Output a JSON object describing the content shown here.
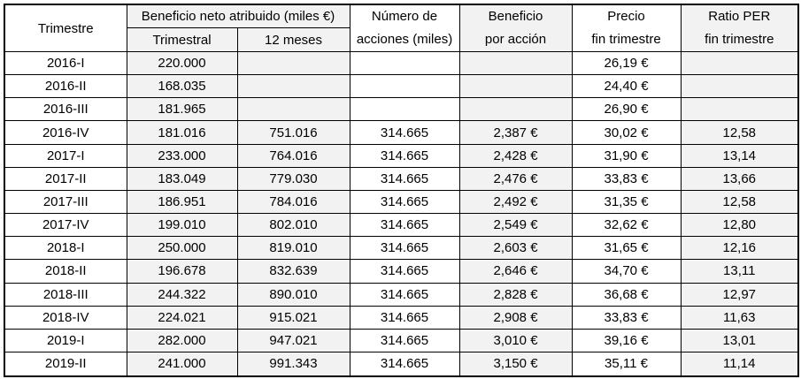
{
  "header": {
    "trimestre": "Trimestre",
    "beneficio_group": "Beneficio neto atribuido (miles €)",
    "trimestral": "Trimestral",
    "doce_meses": "12 meses",
    "acciones_l1": "Número de",
    "acciones_l2": "acciones (miles)",
    "bpa_l1": "Beneficio",
    "bpa_l2": "por acción",
    "precio_l1": "Precio",
    "precio_l2": "fin trimestre",
    "per_l1": "Ratio PER",
    "per_l2": "fin trimestre"
  },
  "colors": {
    "shaded_column_bg": "#f2f2f2",
    "border": "#000000",
    "text": "#000000",
    "background": "#ffffff"
  },
  "chart_data": {
    "type": "table",
    "columns": [
      "Trimestre",
      "Beneficio neto atribuido (miles €) - Trimestral",
      "Beneficio neto atribuido (miles €) - 12 meses",
      "Número de acciones (miles)",
      "Beneficio por acción",
      "Precio fin trimestre",
      "Ratio PER fin trimestre"
    ],
    "rows": [
      [
        "2016-I",
        "220.000",
        "",
        "",
        "",
        "26,19 €",
        ""
      ],
      [
        "2016-II",
        "168.035",
        "",
        "",
        "",
        "24,40 €",
        ""
      ],
      [
        "2016-III",
        "181.965",
        "",
        "",
        "",
        "26,90 €",
        ""
      ],
      [
        "2016-IV",
        "181.016",
        "751.016",
        "314.665",
        "2,387 €",
        "30,02 €",
        "12,58"
      ],
      [
        "2017-I",
        "233.000",
        "764.016",
        "314.665",
        "2,428 €",
        "31,90 €",
        "13,14"
      ],
      [
        "2017-II",
        "183.049",
        "779.030",
        "314.665",
        "2,476 €",
        "33,83 €",
        "13,66"
      ],
      [
        "2017-III",
        "186.951",
        "784.016",
        "314.665",
        "2,492 €",
        "31,35 €",
        "12,58"
      ],
      [
        "2017-IV",
        "199.010",
        "802.010",
        "314.665",
        "2,549 €",
        "32,62 €",
        "12,80"
      ],
      [
        "2018-I",
        "250.000",
        "819.010",
        "314.665",
        "2,603 €",
        "31,65 €",
        "12,16"
      ],
      [
        "2018-II",
        "196.678",
        "832.639",
        "314.665",
        "2,646 €",
        "34,70 €",
        "13,11"
      ],
      [
        "2018-III",
        "244.322",
        "890.010",
        "314.665",
        "2,828 €",
        "36,68 €",
        "12,97"
      ],
      [
        "2018-IV",
        "224.021",
        "915.021",
        "314.665",
        "2,908 €",
        "33,83 €",
        "11,63"
      ],
      [
        "2019-I",
        "282.000",
        "947.021",
        "314.665",
        "3,010 €",
        "39,16 €",
        "13,01"
      ],
      [
        "2019-II",
        "241.000",
        "991.343",
        "314.665",
        "3,150 €",
        "35,11 €",
        "11,14"
      ]
    ]
  }
}
